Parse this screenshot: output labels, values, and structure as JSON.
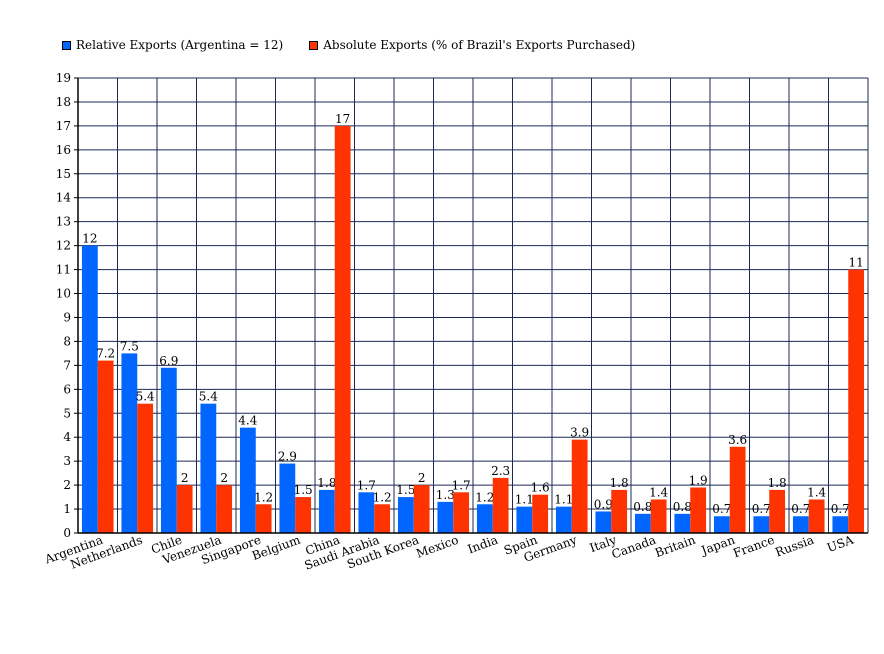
{
  "chart_data": {
    "type": "bar",
    "title": "",
    "xlabel": "",
    "ylabel": "",
    "ylim": [
      0,
      19
    ],
    "grid": true,
    "legend_position": "top-left",
    "categories": [
      "Argentina",
      "Netherlands",
      "Chile",
      "Venezuela",
      "Singapore",
      "Belgium",
      "China",
      "Saudi Arabia",
      "South Korea",
      "Mexico",
      "India",
      "Spain",
      "Germany",
      "Italy",
      "Canada",
      "Britain",
      "Japan",
      "France",
      "Russia",
      "USA"
    ],
    "series": [
      {
        "name": "Relative Exports (Argentina = 12)",
        "color": "#0066ff",
        "values": [
          12,
          7.5,
          6.9,
          5.4,
          4.4,
          2.9,
          1.8,
          1.7,
          1.5,
          1.3,
          1.2,
          1.1,
          1.1,
          0.9,
          0.8,
          0.8,
          0.7,
          0.7,
          0.7,
          0.7
        ]
      },
      {
        "name": "Absolute Exports (% of Brazil's Exports Purchased)",
        "color": "#ff3300",
        "values": [
          7.2,
          5.4,
          2,
          2,
          1.2,
          1.5,
          17,
          1.2,
          2,
          1.7,
          2.3,
          1.6,
          3.9,
          1.8,
          1.4,
          1.9,
          3.6,
          1.8,
          1.4,
          11
        ]
      }
    ],
    "yticks": [
      "0",
      "1",
      "2",
      "3",
      "4",
      "5",
      "6",
      "7",
      "8",
      "9",
      "10",
      "11",
      "12",
      "13",
      "14",
      "15",
      "16",
      "17",
      "18",
      "19"
    ]
  }
}
